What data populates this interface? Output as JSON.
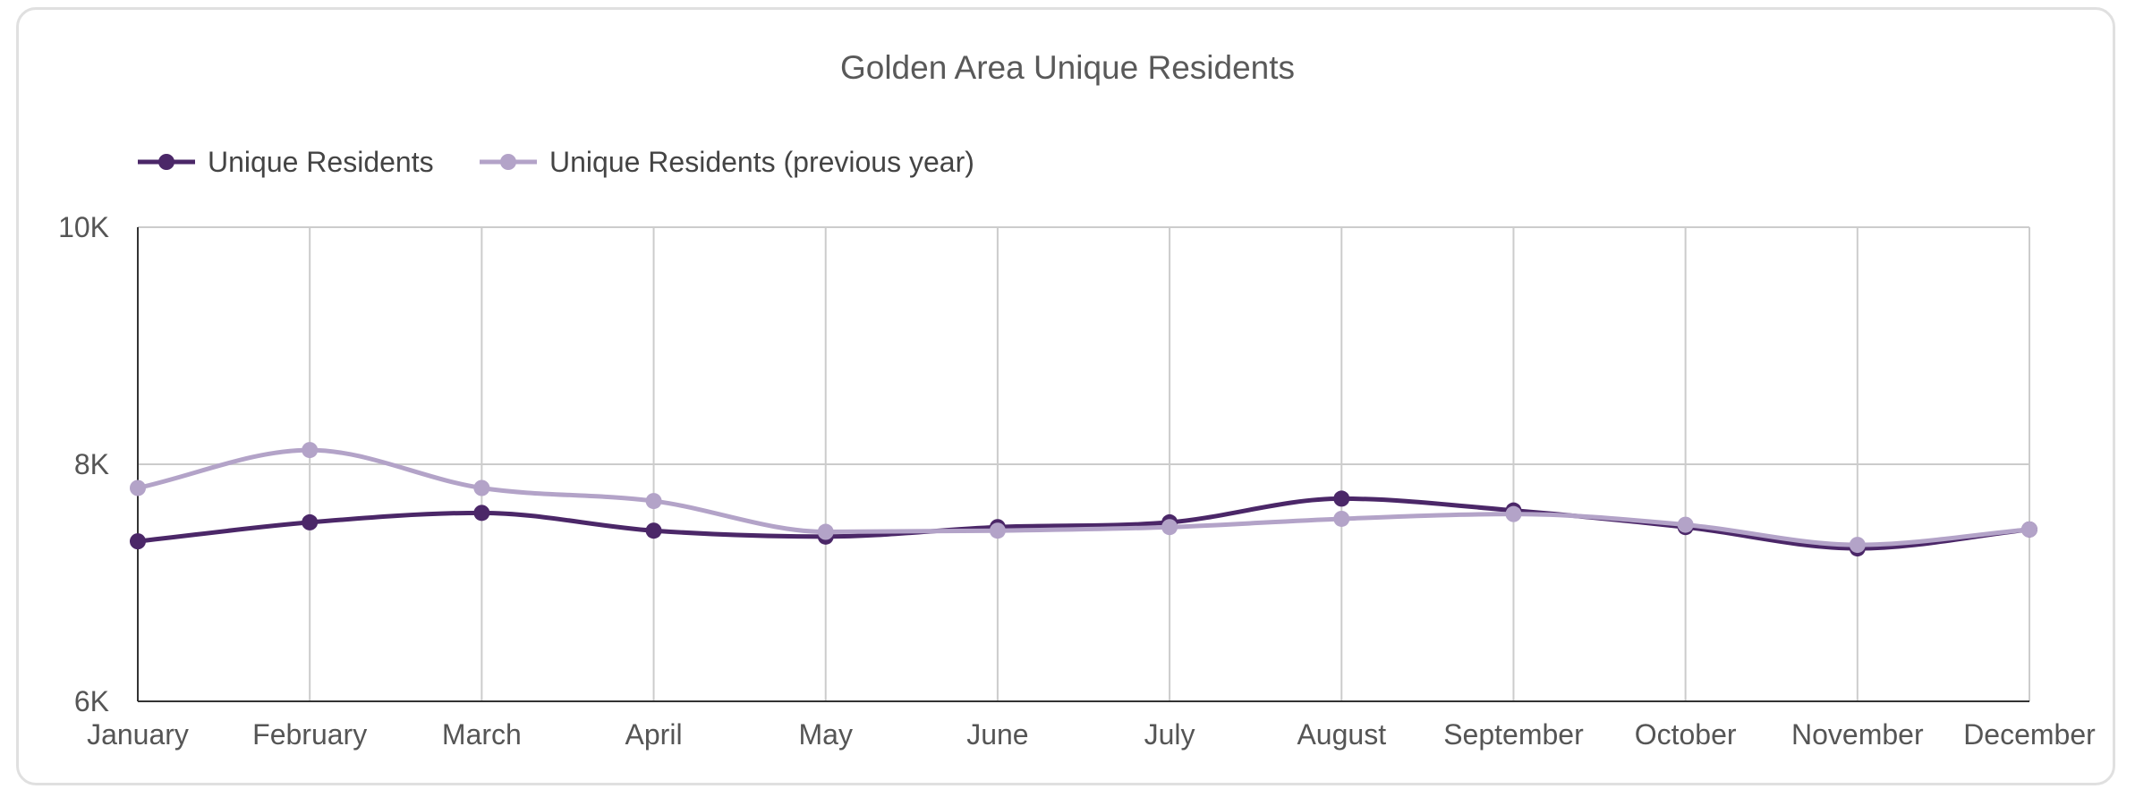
{
  "chart_data": {
    "type": "line",
    "title": "Golden Area Unique Residents",
    "xlabel": "",
    "ylabel": "",
    "categories": [
      "January",
      "February",
      "March",
      "April",
      "May",
      "June",
      "July",
      "August",
      "September",
      "October",
      "November",
      "December"
    ],
    "ylim": [
      6000,
      10000
    ],
    "yticks": [
      6000,
      8000,
      10000
    ],
    "ytick_labels": [
      "6K",
      "8K",
      "10K"
    ],
    "grid": true,
    "legend": "top-left",
    "series": [
      {
        "name": "Unique Residents",
        "color": "#4b2768",
        "values": [
          7350,
          7510,
          7590,
          7440,
          7390,
          7470,
          7510,
          7710,
          7610,
          7470,
          7290,
          7450
        ]
      },
      {
        "name": "Unique Residents (previous year)",
        "color": "#b3a3c8",
        "values": [
          7800,
          8120,
          7800,
          7690,
          7430,
          7440,
          7470,
          7540,
          7580,
          7490,
          7320,
          7450
        ]
      }
    ]
  }
}
